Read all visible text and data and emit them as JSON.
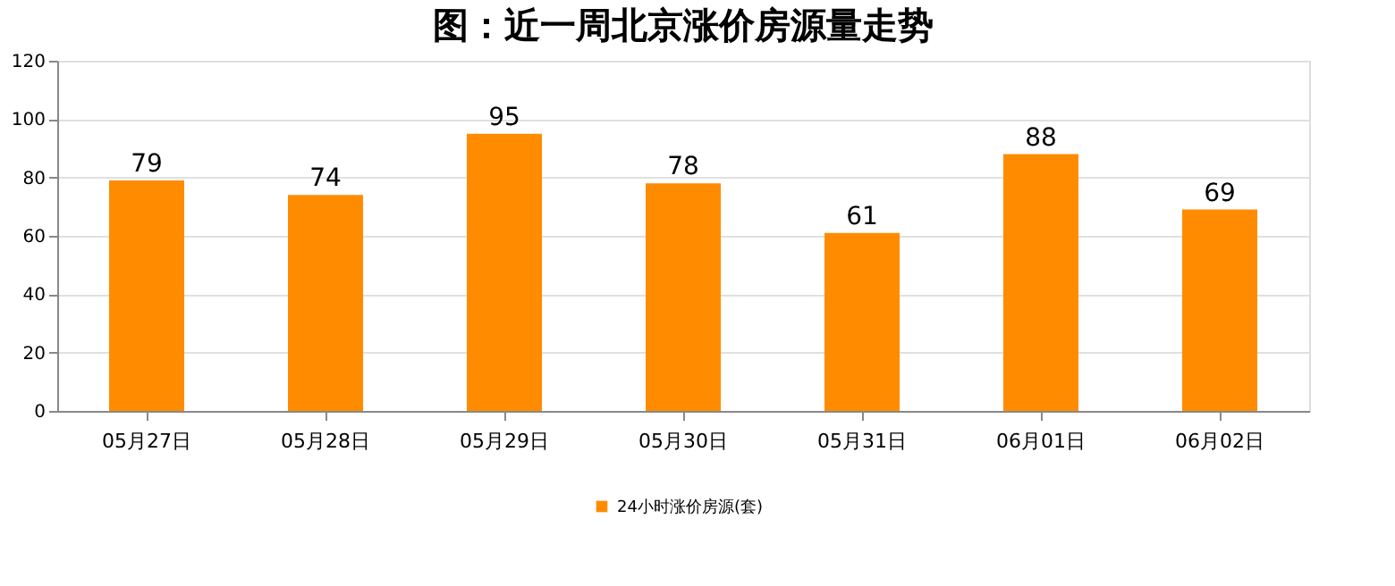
{
  "chart_data": {
    "type": "bar",
    "title": "图：近一周北京涨价房源量走势",
    "categories": [
      "05月27日",
      "05月28日",
      "05月29日",
      "05月30日",
      "05月31日",
      "06月01日",
      "06月02日"
    ],
    "series": [
      {
        "name": "24小时涨价房源(套)",
        "color": "#ff8c00",
        "values": [
          79,
          74,
          95,
          78,
          61,
          88,
          69
        ]
      }
    ],
    "ylim": [
      0,
      120
    ],
    "yticks": [
      0,
      20,
      40,
      60,
      80,
      100,
      120
    ],
    "grid": "y",
    "legend": "bottom",
    "data_labels": true
  }
}
